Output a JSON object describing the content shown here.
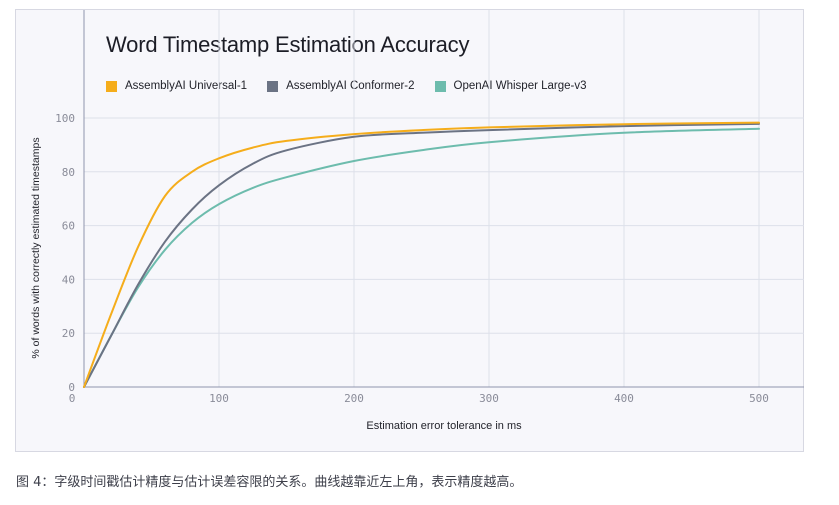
{
  "chart_data": {
    "type": "line",
    "title": "Word Timestamp Estimation Accuracy",
    "xlabel": "Estimation error tolerance in ms",
    "ylabel": "% of words with correctly estimated timestamps",
    "xlim": [
      0,
      530
    ],
    "ylim": [
      0,
      100
    ],
    "xticks": [
      "100",
      "200",
      "300",
      "400",
      "500"
    ],
    "yticks": [
      "0",
      "20",
      "40",
      "60",
      "80",
      "100"
    ],
    "grid": true,
    "legend_position": "top-left",
    "series": [
      {
        "name": "AssemblyAI Universal-1",
        "color": "#f5ad1b",
        "x": [
          0,
          20,
          40,
          60,
          80,
          100,
          125,
          150,
          200,
          250,
          300,
          400,
          500
        ],
        "y": [
          0,
          27,
          52,
          71,
          80,
          85,
          89,
          91.5,
          94,
          95.5,
          96.5,
          97.7,
          98.3
        ]
      },
      {
        "name": "AssemblyAI Conformer-2",
        "color": "#6b7384",
        "x": [
          0,
          20,
          40,
          60,
          80,
          100,
          125,
          150,
          200,
          250,
          300,
          400,
          500
        ],
        "y": [
          0,
          19,
          38,
          54,
          66,
          75,
          83,
          88,
          93,
          94.5,
          95.5,
          97,
          97.8
        ]
      },
      {
        "name": "OpenAI Whisper Large-v3",
        "color": "#6dbcad",
        "x": [
          0,
          20,
          40,
          60,
          80,
          100,
          125,
          150,
          200,
          250,
          300,
          400,
          500
        ],
        "y": [
          0,
          19,
          37,
          51,
          61,
          68,
          74,
          78,
          84,
          88,
          91,
          94.5,
          96
        ]
      }
    ]
  },
  "caption": "图 4：字级时间戳估计精度与估计误差容限的关系。曲线越靠近左上角，表示精度越高。"
}
